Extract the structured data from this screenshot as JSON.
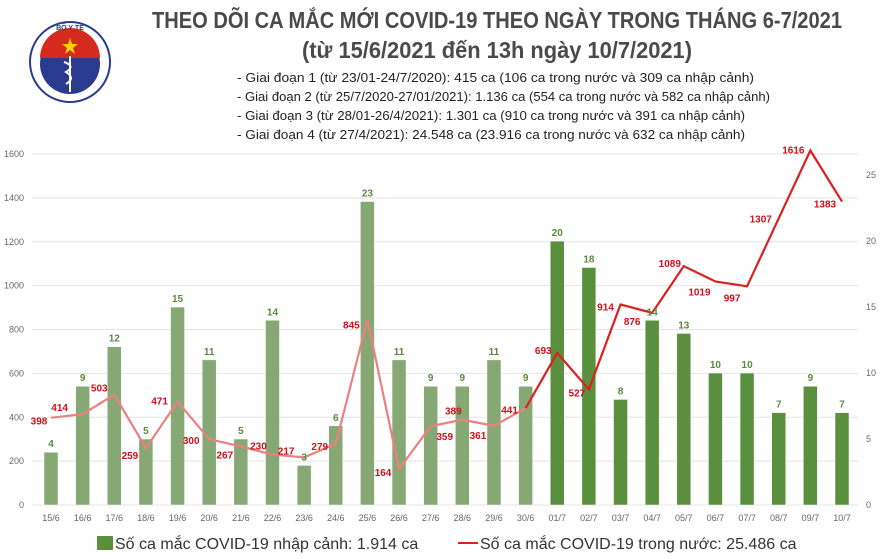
{
  "header": {
    "logo_text": "BỘ Y TẾ · MINISTRY OF HEALTH",
    "title": "THEO DÕI CA MẮC MỚI COVID-19 THEO NGÀY TRONG THÁNG 6-7/2021",
    "subtitle": "(từ 15/6/2021 đến 13h ngày 10/7/2021)",
    "notes": [
      "- Giai đoạn 1 (từ 23/01-24/7/2020): 415 ca (106 ca trong nước và 309 ca nhập cảnh)",
      "- Giai đoạn 2 (từ 25/7/2020-27/01/2021): 1.136 ca (554 ca trong nước và 582 ca nhập cảnh)",
      "- Giai đoạn 3 (từ 28/01-26/4/2021): 1.301 ca (910 ca trong nước và 391 ca nhập cảnh)",
      "- Giai đoạn 4 (từ 27/4/2021): 24.548 ca (23.916 ca trong nước và 632 ca nhập cảnh)"
    ]
  },
  "chart_data": {
    "type": "bar+line",
    "categories": [
      "15/6",
      "16/6",
      "17/6",
      "18/6",
      "19/6",
      "20/6",
      "21/6",
      "22/6",
      "23/6",
      "24/6",
      "25/6",
      "26/6",
      "27/6",
      "28/6",
      "29/6",
      "30/6",
      "01/7",
      "02/7",
      "03/7",
      "04/7",
      "05/7",
      "06/7",
      "07/7",
      "08/7",
      "09/7",
      "10/7"
    ],
    "series": [
      {
        "name": "Số ca mắc COVID-19 nhập cảnh: 1.914 ca",
        "type": "bar",
        "axis": "right",
        "values": [
          4,
          9,
          12,
          5,
          15,
          11,
          5,
          14,
          3,
          6,
          23,
          11,
          9,
          9,
          11,
          9,
          20,
          18,
          8,
          14,
          13,
          10,
          10,
          7,
          9,
          7
        ],
        "color": "#5a8f3e",
        "color_faded": "#86a874"
      },
      {
        "name": "Số ca mắc COVID-19 trong nước: 25.486 ca",
        "type": "line",
        "axis": "left",
        "values": [
          398,
          414,
          503,
          259,
          471,
          300,
          267,
          230,
          217,
          279,
          845,
          164,
          359,
          389,
          361,
          441,
          693,
          527,
          914,
          876,
          1089,
          1019,
          997,
          1307,
          1616,
          1383
        ],
        "color": "#dd1f1f",
        "color_faded": "#ec7f7f"
      }
    ],
    "left_axis": {
      "ylim": [
        0,
        1600
      ],
      "ticks": [
        0,
        200,
        400,
        600,
        800,
        1000,
        1200,
        1400,
        1600
      ]
    },
    "right_axis": {
      "ylim": [
        0,
        26.6
      ],
      "ticks": [
        0,
        5,
        10,
        15,
        20,
        25
      ]
    },
    "grid": true,
    "legend_placement": "bottom"
  }
}
